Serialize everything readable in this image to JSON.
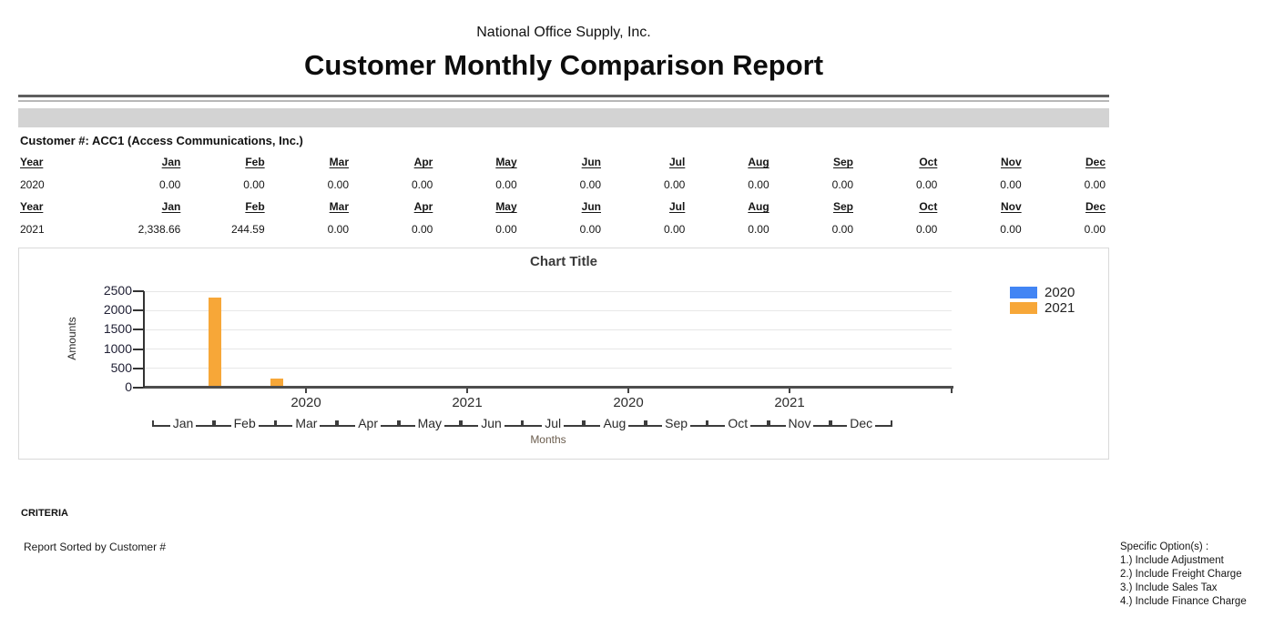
{
  "header": {
    "company": "National Office Supply, Inc.",
    "title": "Customer Monthly Comparison Report"
  },
  "customer": {
    "label": "Customer #: ACC1 (Access Communications, Inc.)"
  },
  "table": {
    "columns": [
      "Year",
      "Jan",
      "Feb",
      "Mar",
      "Apr",
      "May",
      "Jun",
      "Jul",
      "Aug",
      "Sep",
      "Oct",
      "Nov",
      "Dec"
    ],
    "blocks": [
      {
        "year": "2020",
        "values": [
          "0.00",
          "0.00",
          "0.00",
          "0.00",
          "0.00",
          "0.00",
          "0.00",
          "0.00",
          "0.00",
          "0.00",
          "0.00",
          "0.00"
        ]
      },
      {
        "year": "2021",
        "values": [
          "2,338.66",
          "244.59",
          "0.00",
          "0.00",
          "0.00",
          "0.00",
          "0.00",
          "0.00",
          "0.00",
          "0.00",
          "0.00",
          "0.00"
        ]
      }
    ]
  },
  "chart_data": {
    "type": "bar",
    "title": "Chart Title",
    "xlabel": "Months",
    "ylabel": "Amounts",
    "ylim": [
      0,
      2500
    ],
    "ytick_step": 500,
    "grid": true,
    "legend_position": "right",
    "categories": [
      "Jan",
      "Feb",
      "Mar",
      "Apr",
      "May",
      "Jun",
      "Jul",
      "Aug",
      "Sep",
      "Oct",
      "Nov",
      "Dec"
    ],
    "series": [
      {
        "name": "2020",
        "color": "#4285F4",
        "values": [
          0,
          0,
          0,
          0,
          0,
          0,
          0,
          0,
          0,
          0,
          0,
          0
        ]
      },
      {
        "name": "2021",
        "color": "#F7A738",
        "values": [
          2338.66,
          244.59,
          0,
          0,
          0,
          0,
          0,
          0,
          0,
          0,
          0,
          0
        ]
      }
    ],
    "year_axis_labels": [
      "2020",
      "2021",
      "2020",
      "2021"
    ]
  },
  "criteria": {
    "heading": "CRITERIA",
    "sorted_by": "Report Sorted by Customer #"
  },
  "options": {
    "title": "Specific Option(s) :",
    "items": [
      "1.) Include Adjustment",
      "2.) Include Freight Charge",
      "3.) Include Sales Tax",
      "4.) Include Finance Charge"
    ]
  }
}
